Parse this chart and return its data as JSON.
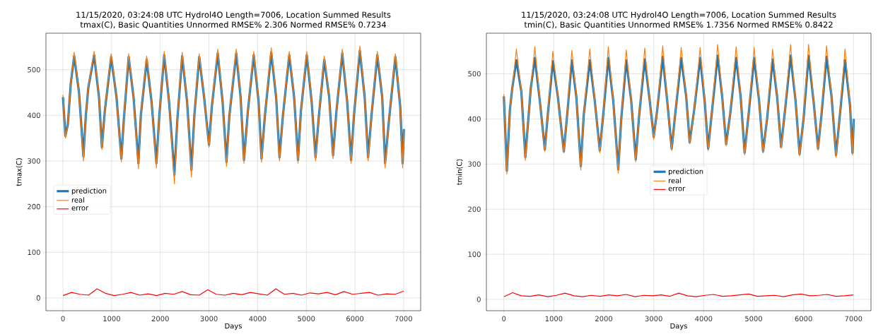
{
  "chart_data": [
    {
      "type": "line",
      "title": "11/15/2020, 03:24:08 UTC Hydrol4O Length=7006, Location Summed Results",
      "subtitle": "tmax(C),  Basic Quantities Unnormed RMSE% 2.306 Normed RMSE% 0.7234",
      "xlabel": "Days",
      "ylabel": "tmax(C)",
      "xlim": [
        -350,
        7350
      ],
      "ylim": [
        -28,
        580
      ],
      "xticks": [
        0,
        1000,
        2000,
        3000,
        4000,
        5000,
        6000,
        7000
      ],
      "yticks": [
        0,
        100,
        200,
        300,
        400,
        500
      ],
      "grid": true,
      "legend": "center left",
      "series": [
        {
          "name": "prediction",
          "color": "#1f77b4",
          "x": [
            0,
            50,
            100,
            160,
            230,
            330,
            420,
            470,
            520,
            640,
            740,
            800,
            860,
            990,
            1100,
            1200,
            1250,
            1350,
            1450,
            1550,
            1600,
            1720,
            1820,
            1920,
            1980,
            2080,
            2180,
            2290,
            2350,
            2450,
            2550,
            2640,
            2700,
            2800,
            2900,
            3000,
            3060,
            3180,
            3280,
            3360,
            3420,
            3560,
            3650,
            3720,
            3800,
            3920,
            4020,
            4080,
            4150,
            4280,
            4380,
            4450,
            4520,
            4650,
            4750,
            4830,
            4890,
            5010,
            5110,
            5190,
            5260,
            5370,
            5470,
            5550,
            5620,
            5740,
            5840,
            5920,
            5980,
            6100,
            6200,
            6270,
            6340,
            6460,
            6560,
            6620,
            6700,
            6830,
            6930,
            6980,
            7006
          ],
          "values": [
            440,
            355,
            380,
            470,
            530,
            450,
            310,
            400,
            460,
            532,
            440,
            330,
            410,
            528,
            440,
            305,
            390,
            528,
            440,
            295,
            400,
            522,
            430,
            295,
            400,
            532,
            430,
            270,
            390,
            530,
            430,
            280,
            400,
            528,
            440,
            335,
            420,
            536,
            430,
            298,
            400,
            536,
            440,
            302,
            410,
            532,
            430,
            305,
            400,
            538,
            440,
            308,
            400,
            532,
            440,
            302,
            410,
            532,
            430,
            308,
            400,
            522,
            440,
            312,
            410,
            536,
            430,
            302,
            400,
            542,
            440,
            308,
            400,
            532,
            440,
            295,
            390,
            528,
            420,
            295,
            370
          ]
        },
        {
          "name": "real",
          "color": "#ff7f0e",
          "x": [
            0,
            50,
            100,
            160,
            230,
            330,
            420,
            470,
            520,
            640,
            740,
            800,
            860,
            990,
            1100,
            1200,
            1250,
            1350,
            1450,
            1550,
            1600,
            1720,
            1820,
            1920,
            1980,
            2080,
            2180,
            2290,
            2350,
            2450,
            2550,
            2640,
            2700,
            2800,
            2900,
            3000,
            3060,
            3180,
            3280,
            3360,
            3420,
            3560,
            3650,
            3720,
            3800,
            3920,
            4020,
            4080,
            4150,
            4280,
            4380,
            4450,
            4520,
            4650,
            4750,
            4830,
            4890,
            5010,
            5110,
            5190,
            5260,
            5370,
            5470,
            5550,
            5620,
            5740,
            5840,
            5920,
            5980,
            6100,
            6200,
            6270,
            6340,
            6460,
            6560,
            6620,
            6700,
            6830,
            6930,
            6980,
            7006
          ],
          "values": [
            445,
            350,
            380,
            470,
            538,
            450,
            300,
            400,
            460,
            540,
            440,
            325,
            410,
            535,
            440,
            298,
            390,
            535,
            440,
            283,
            400,
            530,
            430,
            285,
            400,
            540,
            430,
            250,
            390,
            538,
            430,
            265,
            400,
            535,
            440,
            330,
            420,
            545,
            430,
            288,
            400,
            545,
            440,
            295,
            410,
            540,
            430,
            297,
            400,
            548,
            440,
            300,
            400,
            540,
            440,
            295,
            410,
            540,
            430,
            300,
            400,
            530,
            440,
            305,
            410,
            545,
            430,
            295,
            400,
            552,
            440,
            300,
            400,
            540,
            440,
            285,
            390,
            535,
            420,
            285,
            370
          ]
        },
        {
          "name": "error",
          "color": "#ff0000",
          "x": [
            0,
            175,
            350,
            525,
            700,
            875,
            1050,
            1225,
            1400,
            1575,
            1750,
            1925,
            2100,
            2275,
            2450,
            2625,
            2800,
            2975,
            3150,
            3325,
            3500,
            3675,
            3850,
            4025,
            4200,
            4375,
            4550,
            4725,
            4900,
            5075,
            5250,
            5425,
            5600,
            5775,
            5950,
            6125,
            6300,
            6475,
            6650,
            6825,
            7000
          ],
          "values": [
            5,
            12,
            8,
            6,
            20,
            10,
            5,
            8,
            12,
            6,
            9,
            5,
            10,
            8,
            14,
            7,
            6,
            18,
            8,
            6,
            10,
            7,
            12,
            9,
            6,
            20,
            8,
            10,
            6,
            11,
            9,
            12,
            7,
            14,
            8,
            10,
            12,
            6,
            9,
            8,
            15
          ]
        }
      ]
    },
    {
      "type": "line",
      "title": "11/15/2020, 03:24:08 UTC Hydrol4O Length=7006, Location Summed Results",
      "subtitle": "tmin(C),  Basic Quantities Unnormed RMSE% 1.7356 Normed RMSE% 0.8422",
      "xlabel": "Days",
      "ylabel": "tmin(C)",
      "xlim": [
        -350,
        7350
      ],
      "ylim": [
        -25,
        590
      ],
      "xticks": [
        0,
        1000,
        2000,
        3000,
        4000,
        5000,
        6000,
        7000
      ],
      "yticks": [
        0,
        100,
        200,
        300,
        400,
        500
      ],
      "grid": true,
      "legend": "center",
      "series": [
        {
          "name": "prediction",
          "color": "#1f77b4",
          "x": [
            0,
            60,
            120,
            170,
            250,
            350,
            430,
            490,
            540,
            620,
            720,
            820,
            880,
            980,
            1080,
            1200,
            1260,
            1360,
            1450,
            1540,
            1600,
            1720,
            1820,
            1920,
            1990,
            2090,
            2190,
            2290,
            2350,
            2450,
            2550,
            2640,
            2710,
            2820,
            2910,
            3000,
            3070,
            3180,
            3270,
            3360,
            3430,
            3550,
            3650,
            3720,
            3810,
            3930,
            4020,
            4090,
            4160,
            4280,
            4370,
            4450,
            4530,
            4650,
            4740,
            4820,
            4900,
            5010,
            5110,
            5190,
            5270,
            5380,
            5470,
            5550,
            5630,
            5740,
            5840,
            5920,
            6000,
            6100,
            6200,
            6290,
            6360,
            6460,
            6560,
            6650,
            6720,
            6830,
            6930,
            6980,
            7006
          ],
          "values": [
            450,
            285,
            420,
            470,
            530,
            460,
            315,
            400,
            470,
            535,
            440,
            332,
            410,
            528,
            450,
            328,
            400,
            530,
            450,
            295,
            410,
            530,
            440,
            330,
            410,
            535,
            440,
            288,
            400,
            530,
            440,
            310,
            410,
            532,
            450,
            360,
            420,
            538,
            440,
            334,
            410,
            535,
            450,
            348,
            420,
            535,
            440,
            334,
            410,
            540,
            450,
            344,
            410,
            535,
            450,
            325,
            410,
            535,
            440,
            328,
            400,
            532,
            450,
            338,
            420,
            540,
            440,
            322,
            400,
            540,
            440,
            334,
            410,
            538,
            450,
            320,
            400,
            530,
            430,
            325,
            400
          ]
        },
        {
          "name": "real",
          "color": "#ff7f0e",
          "x": [
            0,
            60,
            120,
            170,
            250,
            350,
            430,
            490,
            540,
            620,
            720,
            820,
            880,
            980,
            1080,
            1200,
            1260,
            1360,
            1450,
            1540,
            1600,
            1720,
            1820,
            1920,
            1990,
            2090,
            2190,
            2290,
            2350,
            2450,
            2550,
            2640,
            2710,
            2820,
            2910,
            3000,
            3070,
            3180,
            3270,
            3360,
            3430,
            3550,
            3650,
            3720,
            3810,
            3930,
            4020,
            4090,
            4160,
            4280,
            4370,
            4450,
            4530,
            4650,
            4740,
            4820,
            4900,
            5010,
            5110,
            5190,
            5270,
            5380,
            5470,
            5550,
            5630,
            5740,
            5840,
            5920,
            6000,
            6100,
            6200,
            6290,
            6360,
            6460,
            6560,
            6650,
            6720,
            6830,
            6930,
            6980,
            7006
          ],
          "values": [
            455,
            278,
            420,
            470,
            555,
            460,
            308,
            400,
            470,
            560,
            440,
            328,
            410,
            550,
            450,
            325,
            400,
            552,
            450,
            287,
            410,
            555,
            440,
            325,
            410,
            560,
            440,
            280,
            400,
            553,
            440,
            305,
            410,
            557,
            450,
            355,
            420,
            562,
            440,
            330,
            410,
            558,
            450,
            345,
            420,
            558,
            440,
            330,
            410,
            565,
            450,
            340,
            410,
            560,
            450,
            320,
            410,
            558,
            440,
            325,
            400,
            555,
            450,
            335,
            420,
            565,
            440,
            318,
            400,
            565,
            440,
            330,
            410,
            562,
            450,
            315,
            400,
            555,
            430,
            320,
            400
          ]
        },
        {
          "name": "error",
          "color": "#ff0000",
          "x": [
            0,
            175,
            350,
            525,
            700,
            875,
            1050,
            1225,
            1400,
            1575,
            1750,
            1925,
            2100,
            2275,
            2450,
            2625,
            2800,
            2975,
            3150,
            3325,
            3500,
            3675,
            3850,
            4025,
            4200,
            4375,
            4550,
            4725,
            4900,
            5075,
            5250,
            5425,
            5600,
            5775,
            5950,
            6125,
            6300,
            6475,
            6650,
            6825,
            7000
          ],
          "values": [
            6,
            15,
            8,
            7,
            10,
            6,
            9,
            14,
            8,
            6,
            9,
            7,
            10,
            8,
            11,
            6,
            9,
            8,
            10,
            7,
            14,
            8,
            6,
            9,
            11,
            7,
            8,
            10,
            12,
            7,
            8,
            9,
            6,
            10,
            12,
            8,
            9,
            11,
            7,
            8,
            10
          ]
        }
      ]
    }
  ]
}
